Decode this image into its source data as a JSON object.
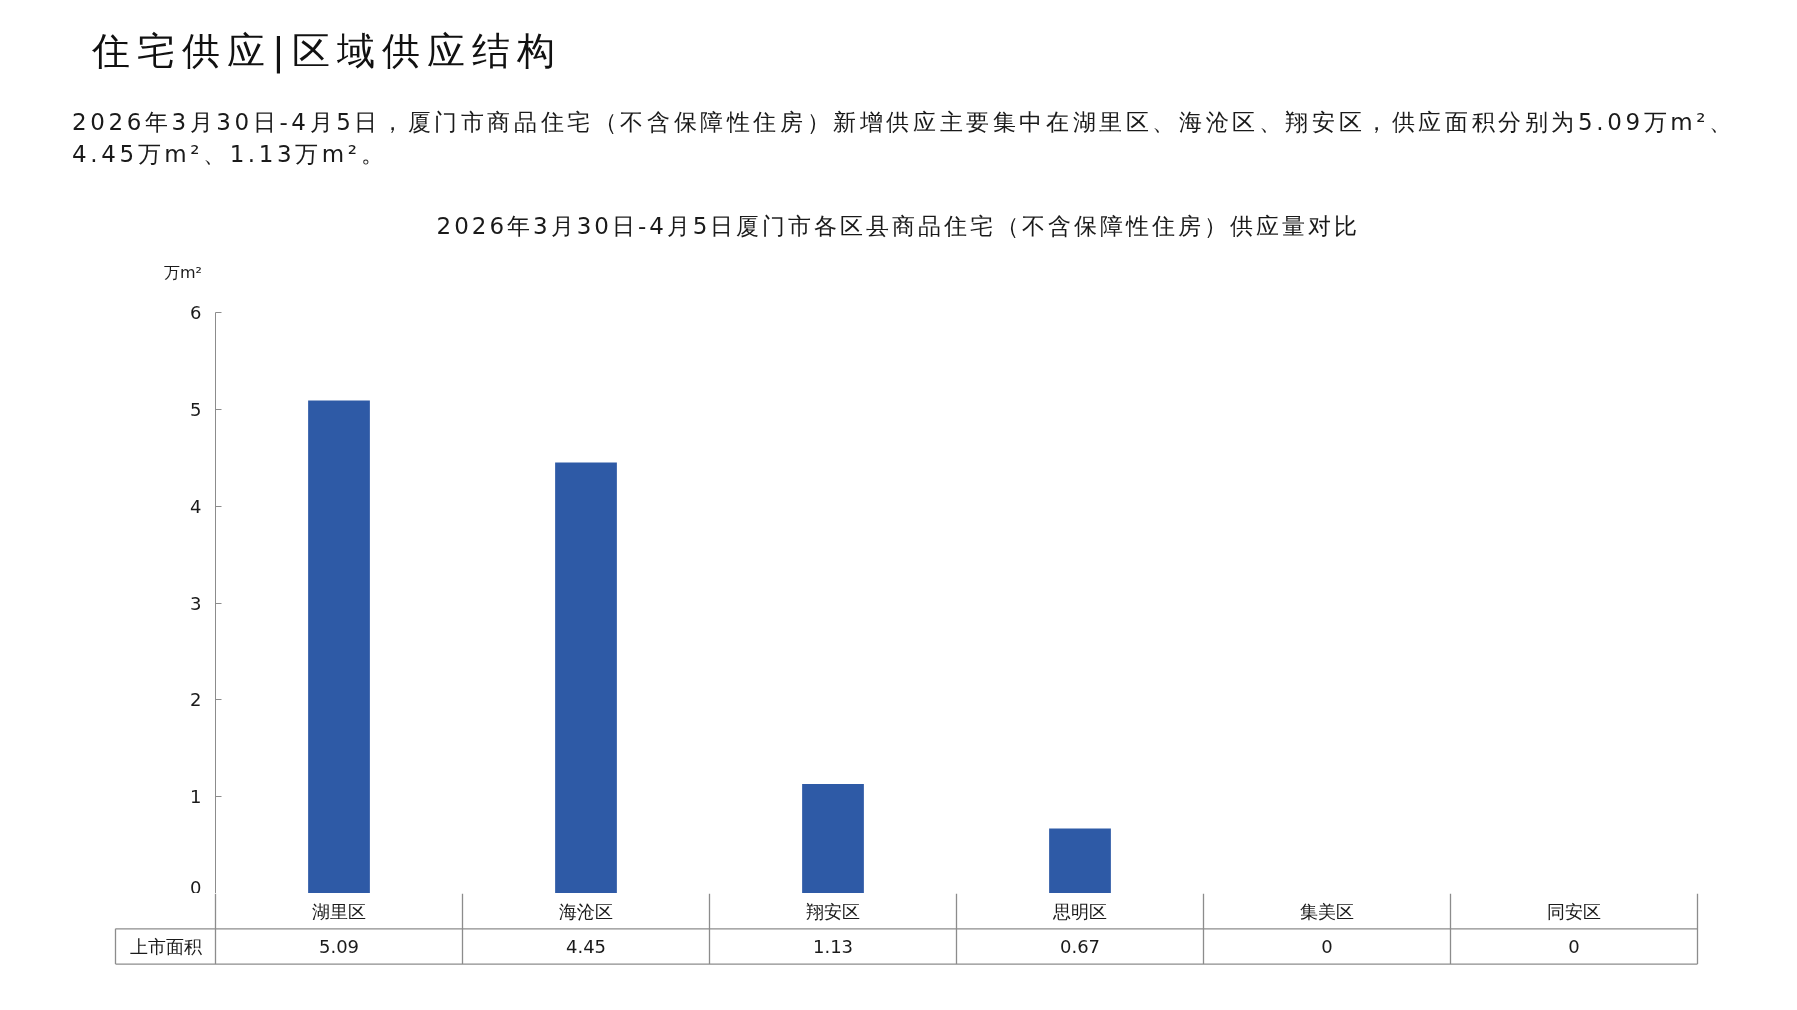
{
  "chart_data": {
    "type": "bar",
    "title": "2026年3月30日-4月5日厦门市各区县商品住宅（不含保障性住房）供应量对比",
    "annotations": [
      "住宅供应|区域供应结构",
      "2026年3月30日-4月5日，厦门市商品住宅（不含保障性住房）新增供应主要集中在湖里区、海沧区、翔安区，供应面积分别为5.09万m²、4.45万m²、1.13万m²。"
    ],
    "ylabel": "万m²",
    "categories": [
      "湖里区",
      "海沧区",
      "翔安区",
      "思明区",
      "集美区",
      "同安区"
    ],
    "series": [
      {
        "name": "上市面积",
        "color": "#2e5aa6",
        "values": [
          5.09,
          4.45,
          1.13,
          0.67,
          0,
          0
        ]
      }
    ],
    "ylim": [
      0,
      6
    ],
    "yticks": [
      0,
      1,
      2,
      3,
      4,
      5,
      6
    ],
    "data_labels": true
  }
}
